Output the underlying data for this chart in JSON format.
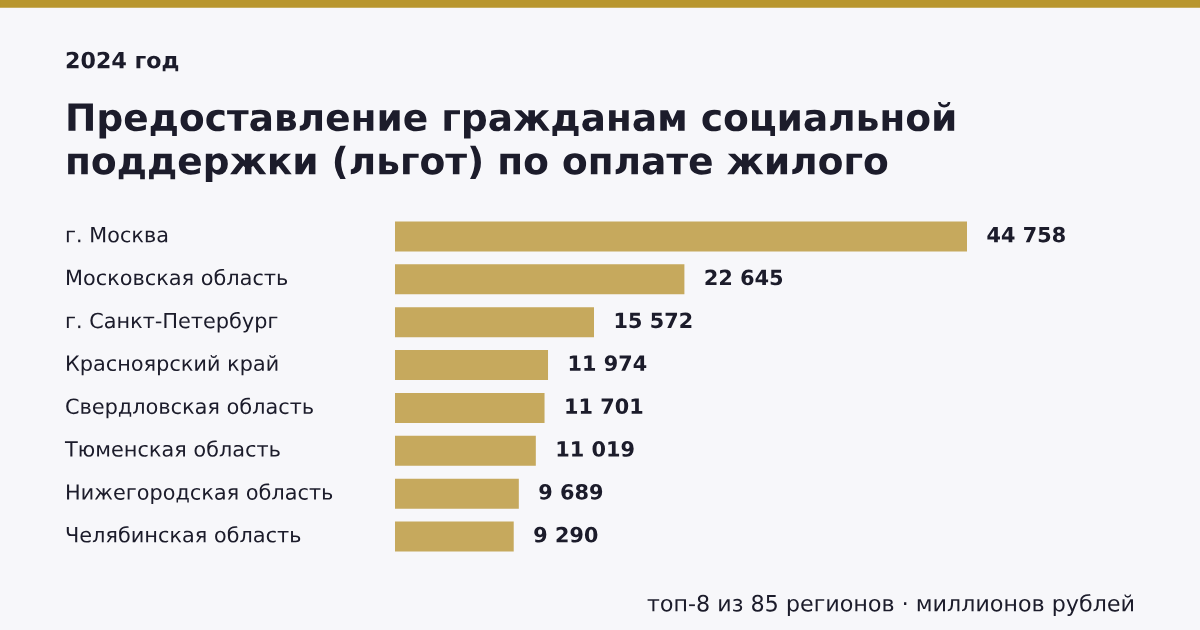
{
  "chart_data": {
    "type": "bar",
    "orientation": "horizontal",
    "subtitle": "2024 год",
    "title": "Предоставление гражданам социальной\nподдержки (льгот) по оплате жилого",
    "categories": [
      "г. Москва",
      "Московская область",
      "г. Санкт-Петербург",
      "Красноярский край",
      "Свердловская область",
      "Тюменская область",
      "Нижегородская область",
      "Челябинская область"
    ],
    "values": [
      44758,
      22645,
      15572,
      11974,
      11701,
      11019,
      9689,
      9290
    ],
    "value_labels": [
      "44 758",
      "22 645",
      "15 572",
      "11 974",
      "11 701",
      "11 019",
      "9 689",
      "9 290"
    ],
    "color": "#c6a95d",
    "annotations": [
      "топ-8 из 85 регионов · миллионов рублей"
    ]
  }
}
